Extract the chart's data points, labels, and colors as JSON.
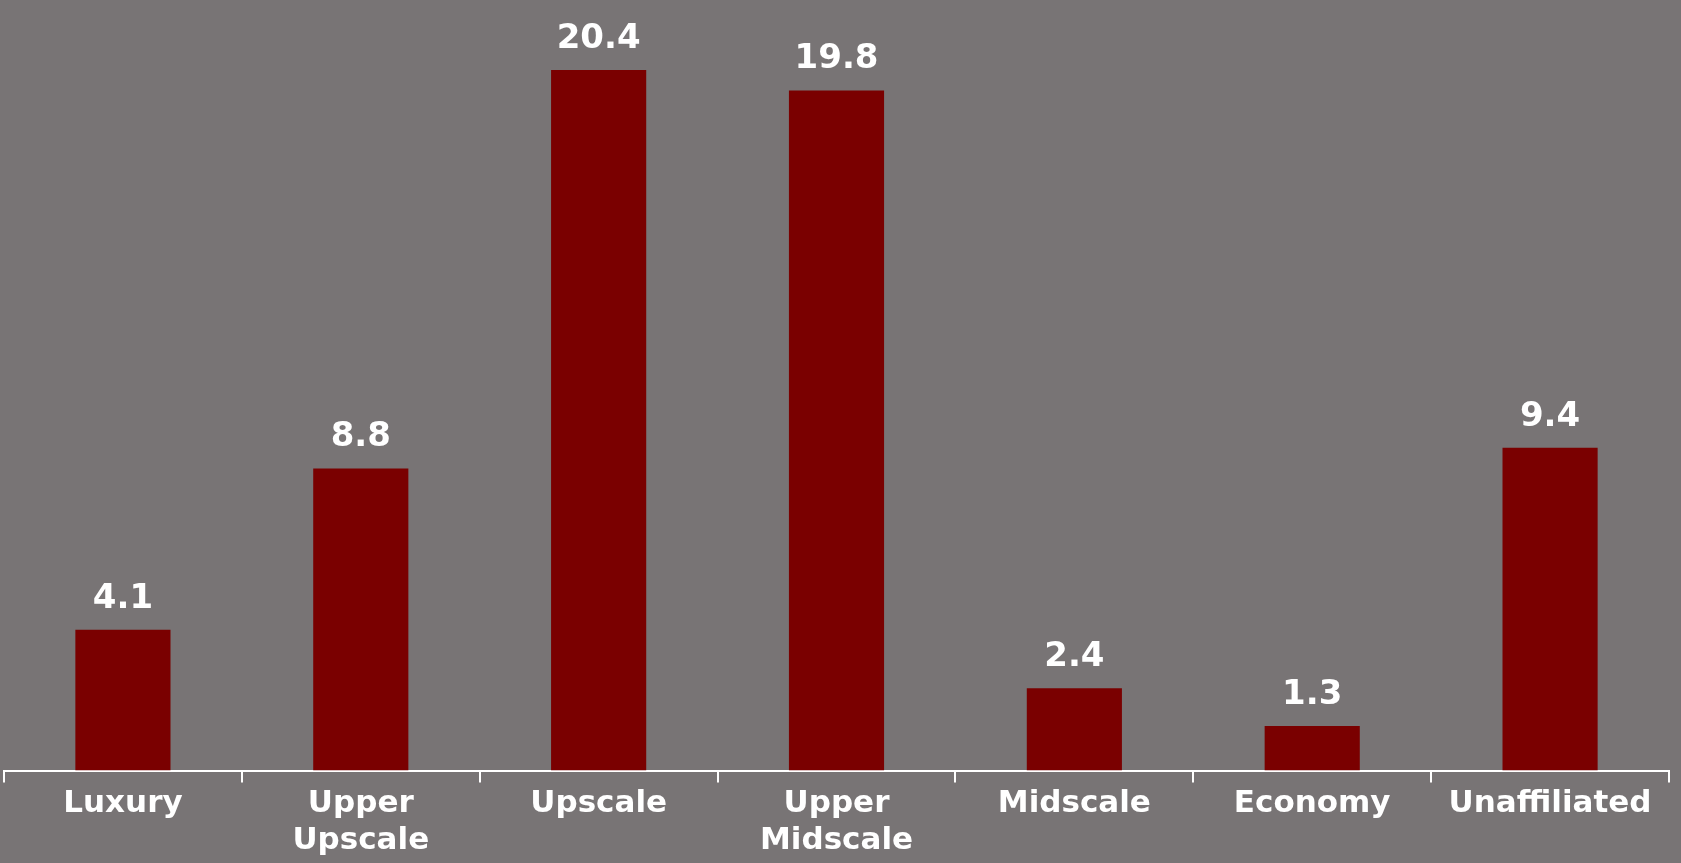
{
  "chart_data": {
    "type": "bar",
    "categories": [
      "Luxury",
      "Upper Upscale",
      "Upscale",
      "Upper Midscale",
      "Midscale",
      "Economy",
      "Unaffiliated"
    ],
    "values": [
      4.1,
      8.8,
      20.4,
      19.8,
      2.4,
      1.3,
      9.4
    ],
    "color": "#7a0000",
    "data_labels": true,
    "grid": false,
    "legend": false
  }
}
